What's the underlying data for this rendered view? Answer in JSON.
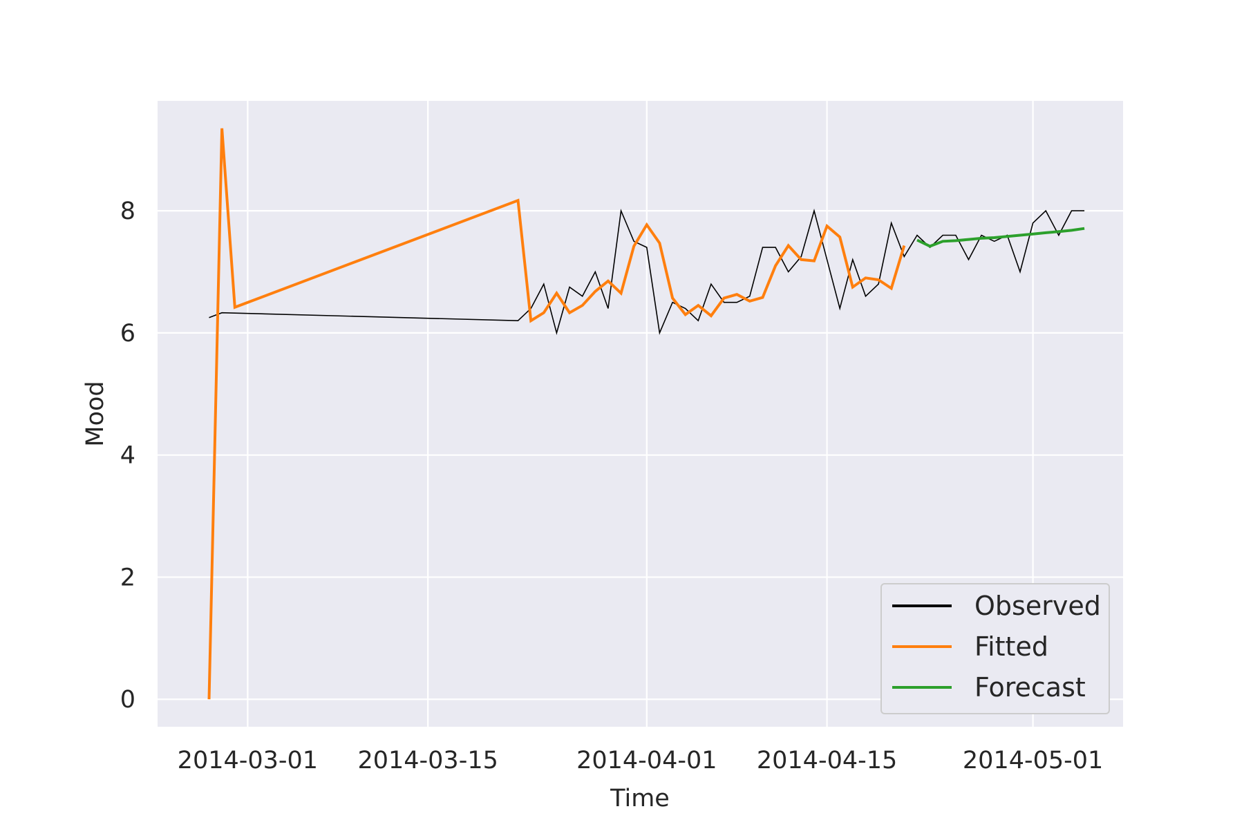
{
  "chart_data": {
    "type": "line",
    "xlabel": "Time",
    "ylabel": "Mood",
    "xlim": [
      "2014-02-22",
      "2014-05-08"
    ],
    "ylim": [
      -0.45,
      9.8
    ],
    "x_ticks": [
      "2014-03-01",
      "2014-03-15",
      "2014-04-01",
      "2014-04-15",
      "2014-05-01"
    ],
    "y_ticks": [
      0,
      2,
      4,
      6,
      8
    ],
    "grid": true,
    "legend_position": "bottom-right",
    "series": [
      {
        "name": "Observed",
        "color": "#000000",
        "points": [
          [
            "2014-02-26",
            6.25
          ],
          [
            "2014-02-27",
            6.33
          ],
          [
            "2014-03-22",
            6.2
          ],
          [
            "2014-03-23",
            6.4
          ],
          [
            "2014-03-24",
            6.8
          ],
          [
            "2014-03-25",
            6.0
          ],
          [
            "2014-03-26",
            6.75
          ],
          [
            "2014-03-27",
            6.6
          ],
          [
            "2014-03-28",
            7.0
          ],
          [
            "2014-03-29",
            6.4
          ],
          [
            "2014-03-30",
            8.0
          ],
          [
            "2014-03-31",
            7.5
          ],
          [
            "2014-04-01",
            7.4
          ],
          [
            "2014-04-02",
            6.0
          ],
          [
            "2014-04-03",
            6.5
          ],
          [
            "2014-04-04",
            6.4
          ],
          [
            "2014-04-05",
            6.2
          ],
          [
            "2014-04-06",
            6.8
          ],
          [
            "2014-04-07",
            6.5
          ],
          [
            "2014-04-08",
            6.5
          ],
          [
            "2014-04-09",
            6.6
          ],
          [
            "2014-04-10",
            7.4
          ],
          [
            "2014-04-11",
            7.4
          ],
          [
            "2014-04-12",
            7.0
          ],
          [
            "2014-04-13",
            7.25
          ],
          [
            "2014-04-14",
            8.0
          ],
          [
            "2014-04-15",
            7.2
          ],
          [
            "2014-04-16",
            6.4
          ],
          [
            "2014-04-17",
            7.2
          ],
          [
            "2014-04-18",
            6.6
          ],
          [
            "2014-04-19",
            6.8
          ],
          [
            "2014-04-20",
            7.8
          ],
          [
            "2014-04-21",
            7.25
          ],
          [
            "2014-04-22",
            7.6
          ],
          [
            "2014-04-23",
            7.4
          ],
          [
            "2014-04-24",
            7.6
          ],
          [
            "2014-04-25",
            7.6
          ],
          [
            "2014-04-26",
            7.2
          ],
          [
            "2014-04-27",
            7.6
          ],
          [
            "2014-04-28",
            7.5
          ],
          [
            "2014-04-29",
            7.6
          ],
          [
            "2014-04-30",
            7.0
          ],
          [
            "2014-05-01",
            7.8
          ],
          [
            "2014-05-02",
            8.0
          ],
          [
            "2014-05-03",
            7.6
          ],
          [
            "2014-05-04",
            8.0
          ],
          [
            "2014-05-05",
            8.0
          ]
        ]
      },
      {
        "name": "Fitted",
        "color": "#ff7f0e",
        "points": [
          [
            "2014-02-26",
            0.0
          ],
          [
            "2014-02-27",
            9.35
          ],
          [
            "2014-02-28",
            6.42
          ],
          [
            "2014-03-22",
            8.17
          ],
          [
            "2014-03-23",
            6.2
          ],
          [
            "2014-03-24",
            6.33
          ],
          [
            "2014-03-25",
            6.65
          ],
          [
            "2014-03-26",
            6.33
          ],
          [
            "2014-03-27",
            6.45
          ],
          [
            "2014-03-28",
            6.68
          ],
          [
            "2014-03-29",
            6.85
          ],
          [
            "2014-03-30",
            6.65
          ],
          [
            "2014-03-31",
            7.42
          ],
          [
            "2014-04-01",
            7.77
          ],
          [
            "2014-04-02",
            7.47
          ],
          [
            "2014-04-03",
            6.57
          ],
          [
            "2014-04-04",
            6.3
          ],
          [
            "2014-04-05",
            6.45
          ],
          [
            "2014-04-06",
            6.28
          ],
          [
            "2014-04-07",
            6.57
          ],
          [
            "2014-04-08",
            6.63
          ],
          [
            "2014-04-09",
            6.52
          ],
          [
            "2014-04-10",
            6.58
          ],
          [
            "2014-04-11",
            7.1
          ],
          [
            "2014-04-12",
            7.43
          ],
          [
            "2014-04-13",
            7.2
          ],
          [
            "2014-04-14",
            7.18
          ],
          [
            "2014-04-15",
            7.75
          ],
          [
            "2014-04-16",
            7.57
          ],
          [
            "2014-04-17",
            6.75
          ],
          [
            "2014-04-18",
            6.9
          ],
          [
            "2014-04-19",
            6.87
          ],
          [
            "2014-04-20",
            6.73
          ],
          [
            "2014-04-21",
            7.43
          ]
        ]
      },
      {
        "name": "Forecast",
        "color": "#2ca02c",
        "points": [
          [
            "2014-04-22",
            7.52
          ],
          [
            "2014-04-23",
            7.42
          ],
          [
            "2014-04-24",
            7.5
          ],
          [
            "2014-04-25",
            7.51
          ],
          [
            "2014-04-26",
            7.53
          ],
          [
            "2014-04-27",
            7.55
          ],
          [
            "2014-04-28",
            7.56
          ],
          [
            "2014-04-29",
            7.58
          ],
          [
            "2014-04-30",
            7.6
          ],
          [
            "2014-05-01",
            7.62
          ],
          [
            "2014-05-02",
            7.64
          ],
          [
            "2014-05-03",
            7.66
          ],
          [
            "2014-05-04",
            7.68
          ],
          [
            "2014-05-05",
            7.71
          ]
        ]
      }
    ]
  }
}
